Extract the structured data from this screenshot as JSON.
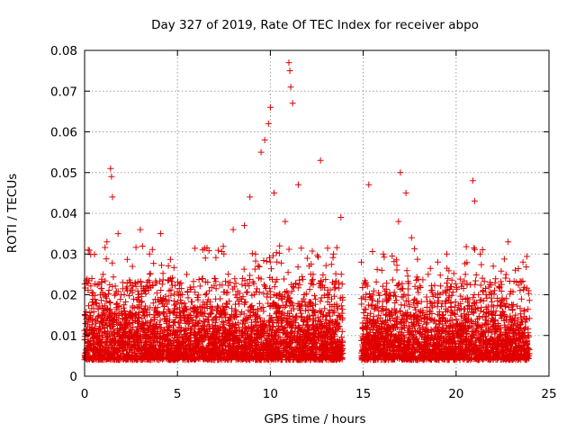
{
  "chart_data": {
    "type": "scatter",
    "title": "Day 327 of 2019, Rate Of TEC Index for receiver abpo",
    "xlabel": "GPS time / hours",
    "ylabel": "ROTI / TECUs",
    "xlim": [
      0,
      25
    ],
    "ylim": [
      0,
      0.08
    ],
    "x_ticks": [
      "0",
      "5",
      "10",
      "15",
      "20",
      "25"
    ],
    "y_ticks": [
      "0",
      "0.01",
      "0.02",
      "0.03",
      "0.04",
      "0.05",
      "0.06",
      "0.07",
      "0.08"
    ],
    "x_tick_values": [
      0,
      5,
      10,
      15,
      20,
      25
    ],
    "y_tick_values": [
      0,
      0.01,
      0.02,
      0.03,
      0.04,
      0.05,
      0.06,
      0.07,
      0.08
    ],
    "grid": true,
    "marker": "+",
    "color": "#e00000",
    "data_gap_hours": [
      13.9,
      14.9
    ],
    "series": [
      {
        "name": "ROTI",
        "x": [
          0.0,
          0.2,
          0.4,
          0.6,
          0.8,
          1.0,
          1.2,
          1.4,
          1.45,
          1.5,
          1.6,
          1.8,
          2.0,
          2.3,
          2.6,
          3.0,
          3.2,
          3.5,
          3.8,
          4.1,
          4.5,
          5.0,
          5.5,
          6.0,
          6.5,
          7.0,
          7.5,
          7.8,
          8.0,
          8.3,
          8.6,
          8.9,
          9.2,
          9.5,
          9.7,
          9.9,
          10.0,
          10.2,
          10.5,
          10.8,
          11.0,
          11.05,
          11.1,
          11.2,
          11.5,
          12.0,
          12.3,
          12.7,
          13.0,
          13.4,
          13.8,
          14.9,
          15.1,
          15.3,
          15.6,
          16.0,
          16.5,
          16.9,
          17.0,
          17.3,
          17.6,
          18.0,
          18.5,
          19.0,
          19.5,
          20.0,
          20.5,
          20.9,
          21.0,
          21.3,
          21.6,
          22.0,
          22.4,
          22.8,
          23.2,
          23.6,
          23.9
        ],
        "y": [
          0.009,
          0.031,
          0.012,
          0.018,
          0.009,
          0.025,
          0.033,
          0.051,
          0.049,
          0.044,
          0.014,
          0.035,
          0.008,
          0.021,
          0.012,
          0.036,
          0.015,
          0.03,
          0.011,
          0.035,
          0.012,
          0.009,
          0.025,
          0.008,
          0.02,
          0.011,
          0.03,
          0.013,
          0.036,
          0.012,
          0.037,
          0.044,
          0.03,
          0.055,
          0.058,
          0.062,
          0.066,
          0.045,
          0.032,
          0.038,
          0.077,
          0.075,
          0.071,
          0.067,
          0.047,
          0.012,
          0.025,
          0.053,
          0.015,
          0.03,
          0.039,
          0.028,
          0.012,
          0.047,
          0.01,
          0.026,
          0.015,
          0.038,
          0.05,
          0.045,
          0.034,
          0.013,
          0.025,
          0.009,
          0.03,
          0.012,
          0.025,
          0.048,
          0.043,
          0.03,
          0.011,
          0.027,
          0.01,
          0.033,
          0.015,
          0.028,
          0.021
        ]
      }
    ]
  }
}
